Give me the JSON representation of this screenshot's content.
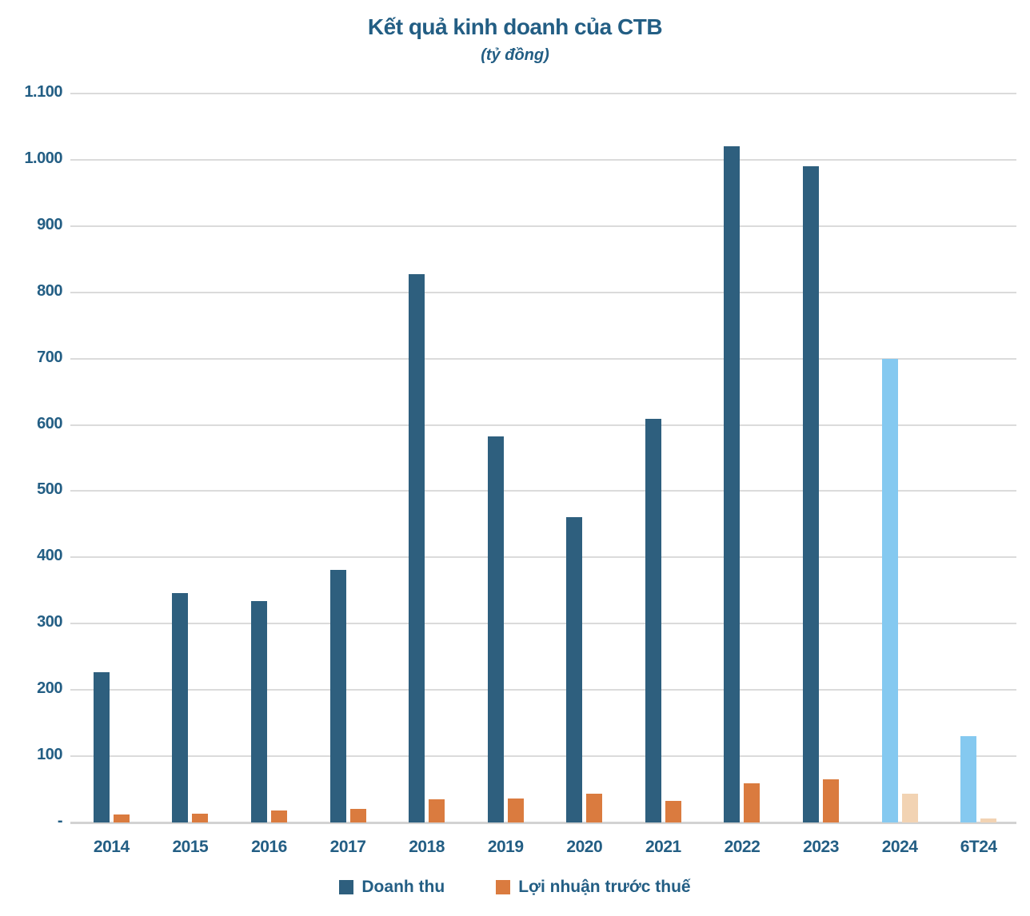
{
  "title": "Kết quả kinh doanh của CTB",
  "subtitle": "(tỷ đồng)",
  "colors": {
    "revenue": "#2E5F7E",
    "profit": "#DA7B3F",
    "revenue_forecast": "#85C9F0",
    "profit_forecast": "#F2D3B3",
    "text": "#235E84",
    "gridline": "#DBDBDB",
    "baseline": "#D2D2D2"
  },
  "legend": [
    {
      "label": "Doanh thu",
      "color": "#2E5F7E"
    },
    {
      "label": "Lợi nhuận trước thuế",
      "color": "#DA7B3F"
    }
  ],
  "chart_data": {
    "type": "bar",
    "title": "Kết quả kinh doanh của CTB",
    "subtitle": "(tỷ đồng)",
    "xlabel": "",
    "ylabel": "tỷ đồng",
    "categories": [
      "2014",
      "2015",
      "2016",
      "2017",
      "2018",
      "2019",
      "2020",
      "2021",
      "2022",
      "2023",
      "2024",
      "6T24"
    ],
    "series": [
      {
        "name": "Doanh thu",
        "values": [
          227,
          346,
          334,
          381,
          827,
          582,
          461,
          609,
          1020,
          990,
          700,
          130
        ]
      },
      {
        "name": "Lợi nhuận trước thuế",
        "values": [
          12,
          13,
          18,
          21,
          35,
          36,
          43,
          32,
          59,
          65,
          44,
          6
        ]
      }
    ],
    "forecast_categories": [
      "2024",
      "6T24"
    ],
    "ylim": [
      0,
      1100
    ],
    "ytick_interval": 100,
    "ytick_labels": [
      "-",
      "100",
      "200",
      "300",
      "400",
      "500",
      "600",
      "700",
      "800",
      "900",
      "1.000",
      "1.100"
    ],
    "grid": true,
    "legend_position": "bottom"
  }
}
